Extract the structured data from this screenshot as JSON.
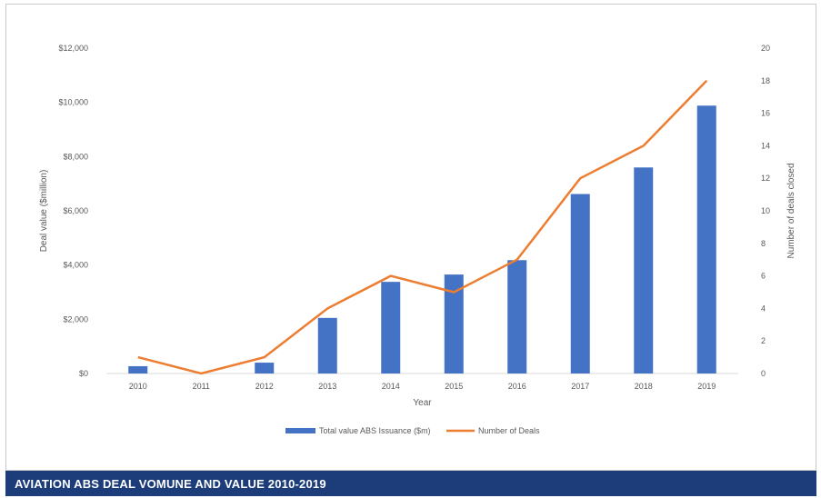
{
  "caption": "AVIATION ABS DEAL VOMUNE AND VALUE 2010-2019",
  "chart_data": {
    "type": "bar",
    "categories": [
      "2010",
      "2011",
      "2012",
      "2013",
      "2014",
      "2015",
      "2016",
      "2017",
      "2018",
      "2019"
    ],
    "series": [
      {
        "name": "Total value ABS Issuance ($m)",
        "type": "bar",
        "axis": "left",
        "color": "#4472c4",
        "values": [
          270,
          0,
          400,
          2050,
          3380,
          3650,
          4180,
          6620,
          7600,
          9880
        ]
      },
      {
        "name": "Number of Deals",
        "type": "line",
        "axis": "right",
        "color": "#ed7d31",
        "values": [
          1,
          0,
          1,
          4,
          6,
          5,
          7,
          12,
          14,
          18
        ]
      }
    ],
    "xlabel": "Year",
    "ylabel": "Deal value ($million)",
    "y2label": "Number of deals closed",
    "ylim": [
      0,
      12000
    ],
    "y2lim": [
      0,
      20
    ],
    "yticks": [
      "$0",
      "$2,000",
      "$4,000",
      "$6,000",
      "$8,000",
      "$10,000",
      "$12,000"
    ],
    "y2ticks": [
      "0",
      "2",
      "4",
      "6",
      "8",
      "10",
      "12",
      "14",
      "16",
      "18",
      "20"
    ],
    "legend": "bottom",
    "grid": false
  }
}
